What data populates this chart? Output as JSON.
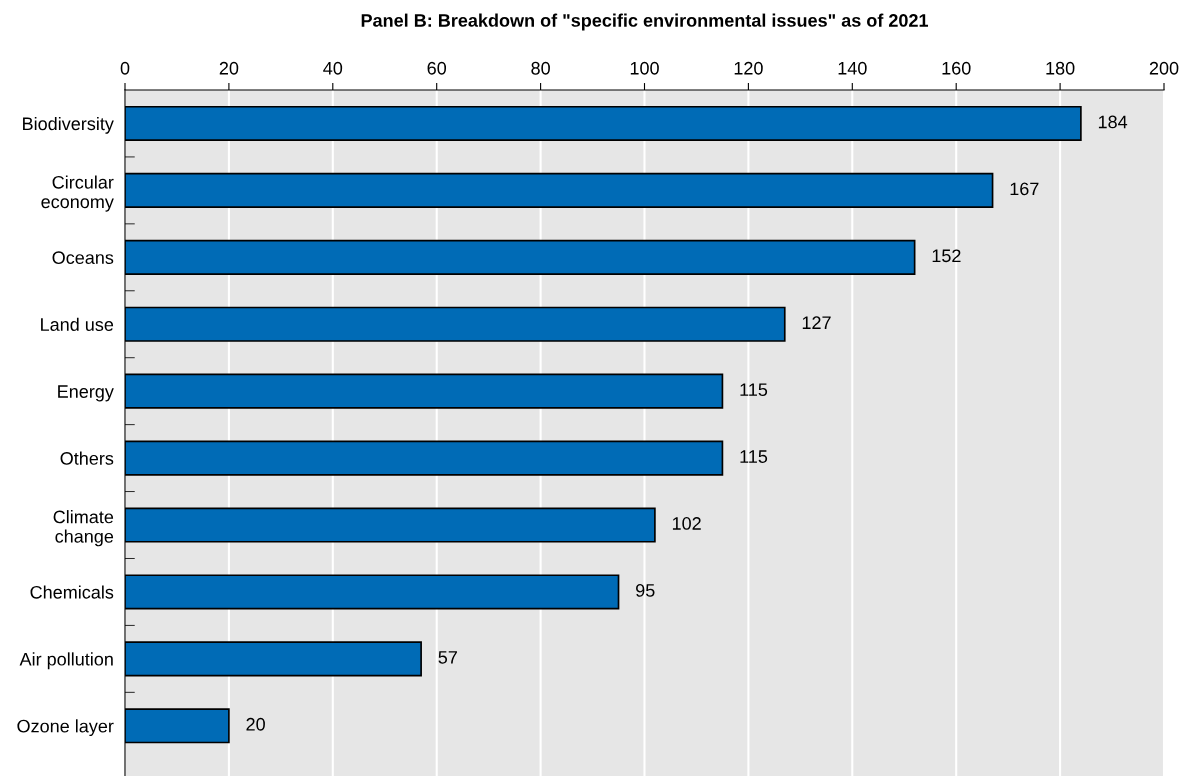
{
  "chart_data": {
    "type": "bar",
    "orientation": "horizontal",
    "title": "Panel B: Breakdown of \"specific environmental issues\" as of 2021",
    "categories": [
      "Biodiversity",
      "Circular\neconomy",
      "Oceans",
      "Land use",
      "Energy",
      "Others",
      "Climate\nchange",
      "Chemicals",
      "Air pollution",
      "Ozone layer"
    ],
    "values": [
      184,
      167,
      152,
      127,
      115,
      115,
      102,
      95,
      57,
      20
    ],
    "color": "#006bb6",
    "xlim": [
      0,
      200
    ],
    "xticks": [
      0,
      20,
      40,
      60,
      80,
      100,
      120,
      140,
      160,
      180,
      200
    ],
    "grid": "x",
    "data_labels": true,
    "legend": false
  }
}
